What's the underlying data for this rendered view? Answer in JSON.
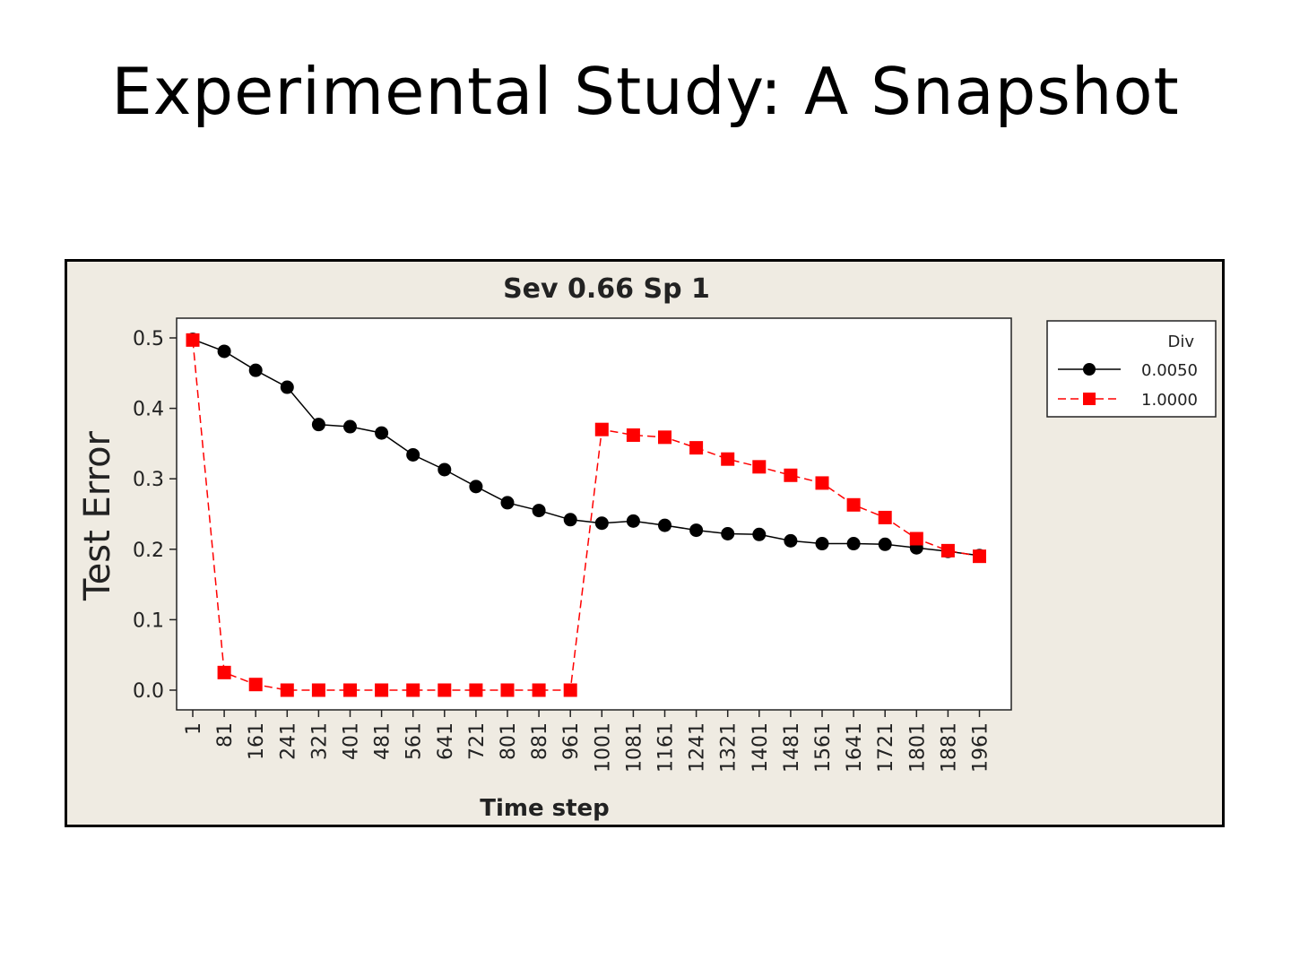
{
  "slide": {
    "title": "Experimental Study: A Snapshot"
  },
  "chart_data": {
    "type": "line",
    "title": "Sev 0.66 Sp 1",
    "xlabel": "Time step",
    "ylabel": "Test Error",
    "categories": [
      "1",
      "81",
      "161",
      "241",
      "321",
      "401",
      "481",
      "561",
      "641",
      "721",
      "801",
      "881",
      "961",
      "1001",
      "1081",
      "1161",
      "1241",
      "1321",
      "1401",
      "1481",
      "1561",
      "1641",
      "1721",
      "1801",
      "1881",
      "1961"
    ],
    "ylim": [
      -0.028,
      0.528
    ],
    "yticks": [
      0.0,
      0.1,
      0.2,
      0.3,
      0.4,
      0.5
    ],
    "ytick_labels": [
      "0.0",
      "0.1",
      "0.2",
      "0.3",
      "0.4",
      "0.5"
    ],
    "legend": {
      "title": "Div",
      "position": "right"
    },
    "series": [
      {
        "name": "0.0050",
        "color": "#000000",
        "marker": "circle",
        "line_style": "solid",
        "values": [
          0.498,
          0.481,
          0.454,
          0.43,
          0.377,
          0.374,
          0.365,
          0.334,
          0.313,
          0.289,
          0.266,
          0.255,
          0.242,
          0.237,
          0.24,
          0.234,
          0.227,
          0.222,
          0.221,
          0.212,
          0.208,
          0.208,
          0.207,
          0.202,
          0.197,
          0.191
        ]
      },
      {
        "name": "1.0000",
        "color": "#ff0000",
        "marker": "square",
        "line_style": "dashed",
        "values": [
          0.497,
          0.025,
          0.008,
          0.0,
          0.0,
          0.0,
          0.0,
          0.0,
          0.0,
          0.0,
          0.0,
          0.0,
          0.0,
          0.37,
          0.362,
          0.359,
          0.344,
          0.328,
          0.317,
          0.305,
          0.294,
          0.263,
          0.245,
          0.215,
          0.198,
          0.19
        ]
      }
    ]
  }
}
